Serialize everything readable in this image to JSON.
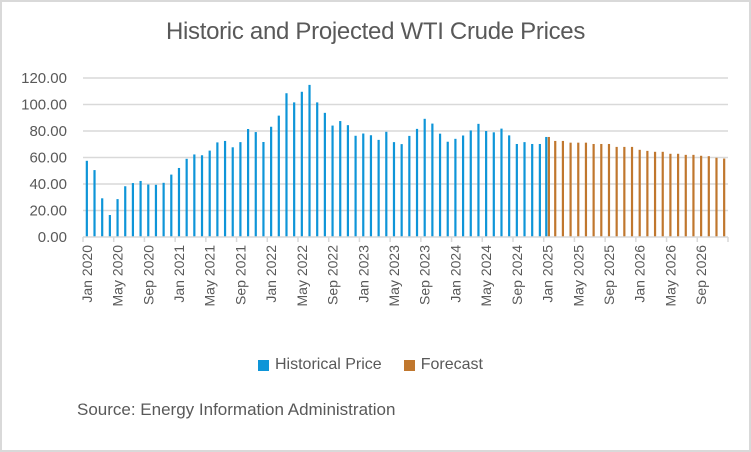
{
  "chart_data": {
    "type": "bar",
    "title": "Historic and Projected WTI Crude Prices",
    "xlabel": "",
    "ylabel": "",
    "ylim": [
      0,
      120
    ],
    "yticks": [
      "0.00",
      "20.00",
      "40.00",
      "60.00",
      "80.00",
      "100.00",
      "120.00"
    ],
    "ytick_values": [
      0,
      20,
      40,
      60,
      80,
      100,
      120
    ],
    "grid": true,
    "legend_position": "bottom",
    "x_start": "Jan 2020",
    "x_end": "Dec 2026",
    "xtick_labels": [
      "Jan 2020",
      "May 2020",
      "Sep 2020",
      "Jan 2021",
      "May 2021",
      "Sep 2021",
      "Jan 2022",
      "May 2022",
      "Sep 2022",
      "Jan 2023",
      "May 2023",
      "Sep 2023",
      "Jan 2024",
      "May 2024",
      "Sep 2024",
      "Jan 2025",
      "May 2025",
      "Sep 2025",
      "Jan 2026",
      "May 2026",
      "Sep 2026"
    ],
    "xtick_every_months": 4,
    "series": [
      {
        "name": "Historical Price",
        "color": "#0e95d8",
        "start": "Jan 2020",
        "values": [
          57.5,
          50.5,
          29.2,
          16.6,
          28.6,
          38.3,
          40.7,
          42.3,
          39.6,
          39.4,
          40.9,
          47.1,
          52.1,
          59.0,
          62.3,
          61.7,
          65.2,
          71.4,
          72.5,
          67.7,
          71.6,
          81.5,
          79.2,
          71.7,
          83.2,
          91.6,
          108.5,
          101.6,
          109.6,
          114.8,
          101.6,
          93.7,
          84.1,
          87.5,
          84.4,
          76.4,
          78.1,
          76.8,
          73.3,
          79.4,
          71.6,
          70.1,
          76.3,
          81.6,
          89.2,
          85.6,
          78.0,
          71.9,
          74.1,
          76.6,
          80.4,
          85.4,
          80.0,
          79.0,
          81.8,
          76.7,
          70.2,
          71.6,
          70.2,
          70.2,
          75.5
        ]
      },
      {
        "name": "Forecast",
        "color": "#c0772e",
        "start": "Jan 2025",
        "values": [
          75.5,
          72.5,
          72.5,
          71.2,
          71.2,
          71.2,
          70.2,
          70.2,
          70.2,
          68.0,
          68.0,
          68.0,
          65.8,
          65.0,
          64.3,
          64.3,
          62.8,
          62.8,
          62.0,
          62.0,
          61.3,
          61.0,
          59.8,
          59.2
        ]
      }
    ],
    "source": "Source: Energy Information Administration"
  },
  "legend": {
    "items": [
      {
        "label": "Historical Price",
        "color": "#0e95d8"
      },
      {
        "label": "Forecast",
        "color": "#c0772e"
      }
    ]
  },
  "colors": {
    "gridline": "#d9d9d9",
    "text": "#595959",
    "border": "#d9d9d9"
  }
}
